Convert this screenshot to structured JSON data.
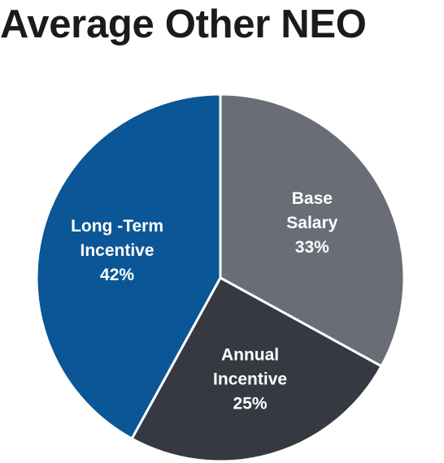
{
  "chart_data": {
    "type": "pie",
    "title": "Average Other NEO",
    "slices": [
      {
        "label_lines": [
          "Base",
          "Salary",
          "33%"
        ],
        "value": 33,
        "color": "#6a6d76"
      },
      {
        "label_lines": [
          "Annual",
          "Incentive",
          "25%"
        ],
        "value": 25,
        "color": "#363941"
      },
      {
        "label_lines": [
          "Long -Term",
          "Incentive",
          "42%"
        ],
        "value": 42,
        "color": "#0b5697"
      }
    ],
    "start_angle_deg": 90,
    "direction": "clockwise",
    "separator_color": "#ffffff"
  }
}
